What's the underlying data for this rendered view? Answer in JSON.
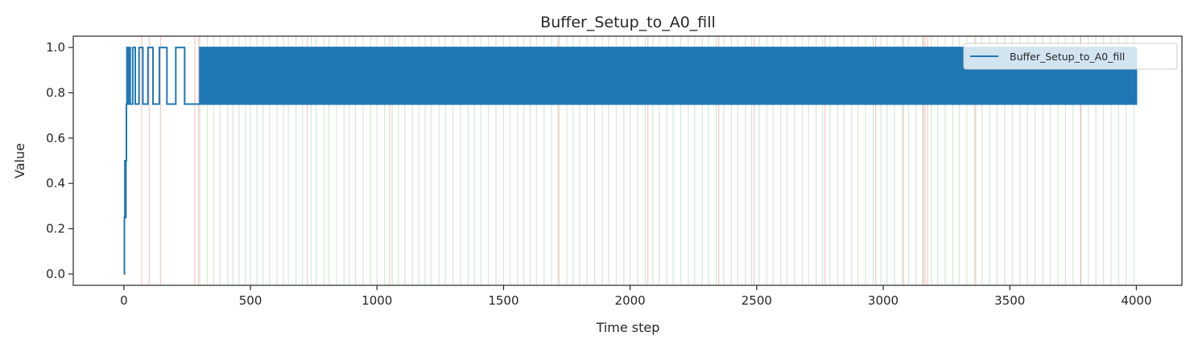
{
  "chart_data": {
    "type": "line",
    "title": "Buffer_Setup_to_A0_fill",
    "xlabel": "Time step",
    "ylabel": "Value",
    "xlim": [
      -200,
      4180
    ],
    "ylim": [
      -0.05,
      1.05
    ],
    "xticks": [
      0,
      500,
      1000,
      1500,
      2000,
      2500,
      3000,
      3500,
      4000
    ],
    "xtick_labels": [
      "0",
      "500",
      "1000",
      "1500",
      "2000",
      "2500",
      "3000",
      "3500",
      "4000"
    ],
    "yticks": [
      0.0,
      0.2,
      0.4,
      0.6,
      0.8,
      1.0
    ],
    "ytick_labels": [
      "0.0",
      "0.2",
      "0.4",
      "0.6",
      "0.8",
      "1.0"
    ],
    "grid": false,
    "legend": {
      "position": "top-right",
      "entries": [
        "Buffer_Setup_to_A0_fill"
      ]
    },
    "series": [
      {
        "name": "Buffer_Setup_to_A0_fill",
        "color": "#1f77b4",
        "x": [
          0,
          2,
          4,
          6,
          8,
          10,
          12,
          15,
          20,
          25,
          35,
          45,
          60,
          75,
          95,
          115,
          140,
          170,
          205,
          240,
          300,
          4000
        ],
        "y": [
          0.0,
          0.25,
          0.5,
          0.25,
          0.5,
          0.75,
          1.0,
          0.75,
          1.0,
          0.75,
          1.0,
          0.75,
          1.0,
          0.75,
          1.0,
          0.75,
          1.0,
          0.75,
          1.0,
          0.75,
          1.0,
          0.75
        ],
        "oscillation": {
          "from": 300,
          "to": 4000,
          "high": 1.0,
          "low": 0.75,
          "period": 10
        }
      }
    ],
    "event_markers": {
      "success_color": "#2ca02c",
      "failure_color": "#d62728",
      "success_x": [
        300,
        330,
        355,
        380,
        410,
        430,
        455,
        480,
        500,
        525,
        550,
        575,
        605,
        630,
        650,
        680,
        705,
        740,
        760,
        790,
        810,
        840,
        870,
        890,
        915,
        945,
        975,
        1000,
        1030,
        1060,
        1085,
        1110,
        1140,
        1165,
        1190,
        1215,
        1245,
        1270,
        1300,
        1330,
        1360,
        1385,
        1410,
        1440,
        1470,
        1500,
        1525,
        1555,
        1580,
        1605,
        1630,
        1660,
        1690,
        1720,
        1750,
        1775,
        1800,
        1830,
        1860,
        1890,
        1915,
        1945,
        1975,
        2000,
        2030,
        2060,
        2090,
        2115,
        2145,
        2170,
        2200,
        2230,
        2255,
        2285,
        2310,
        2340,
        2370,
        2400,
        2425,
        2455,
        2480,
        2510,
        2540,
        2565,
        2595,
        2620,
        2650,
        2680,
        2705,
        2735,
        2760,
        2790,
        2820,
        2845,
        2875,
        2900,
        2930,
        2960,
        2990,
        3015,
        3045,
        3075,
        3100,
        3130,
        3160,
        3190,
        3215,
        3245,
        3275,
        3300,
        3330,
        3360,
        3390,
        3420,
        3450,
        3480,
        3510,
        3540,
        3570,
        3600,
        3630,
        3660,
        3690,
        3720,
        3750,
        3780,
        3810,
        3840,
        3870,
        3900,
        3930,
        3960,
        3990
      ],
      "failure_x": [
        70,
        100,
        145,
        280,
        295,
        725,
        1050,
        1715,
        2070,
        2350,
        2490,
        2770,
        2970,
        3080,
        3155,
        3165,
        3175,
        3365,
        3780
      ]
    }
  }
}
